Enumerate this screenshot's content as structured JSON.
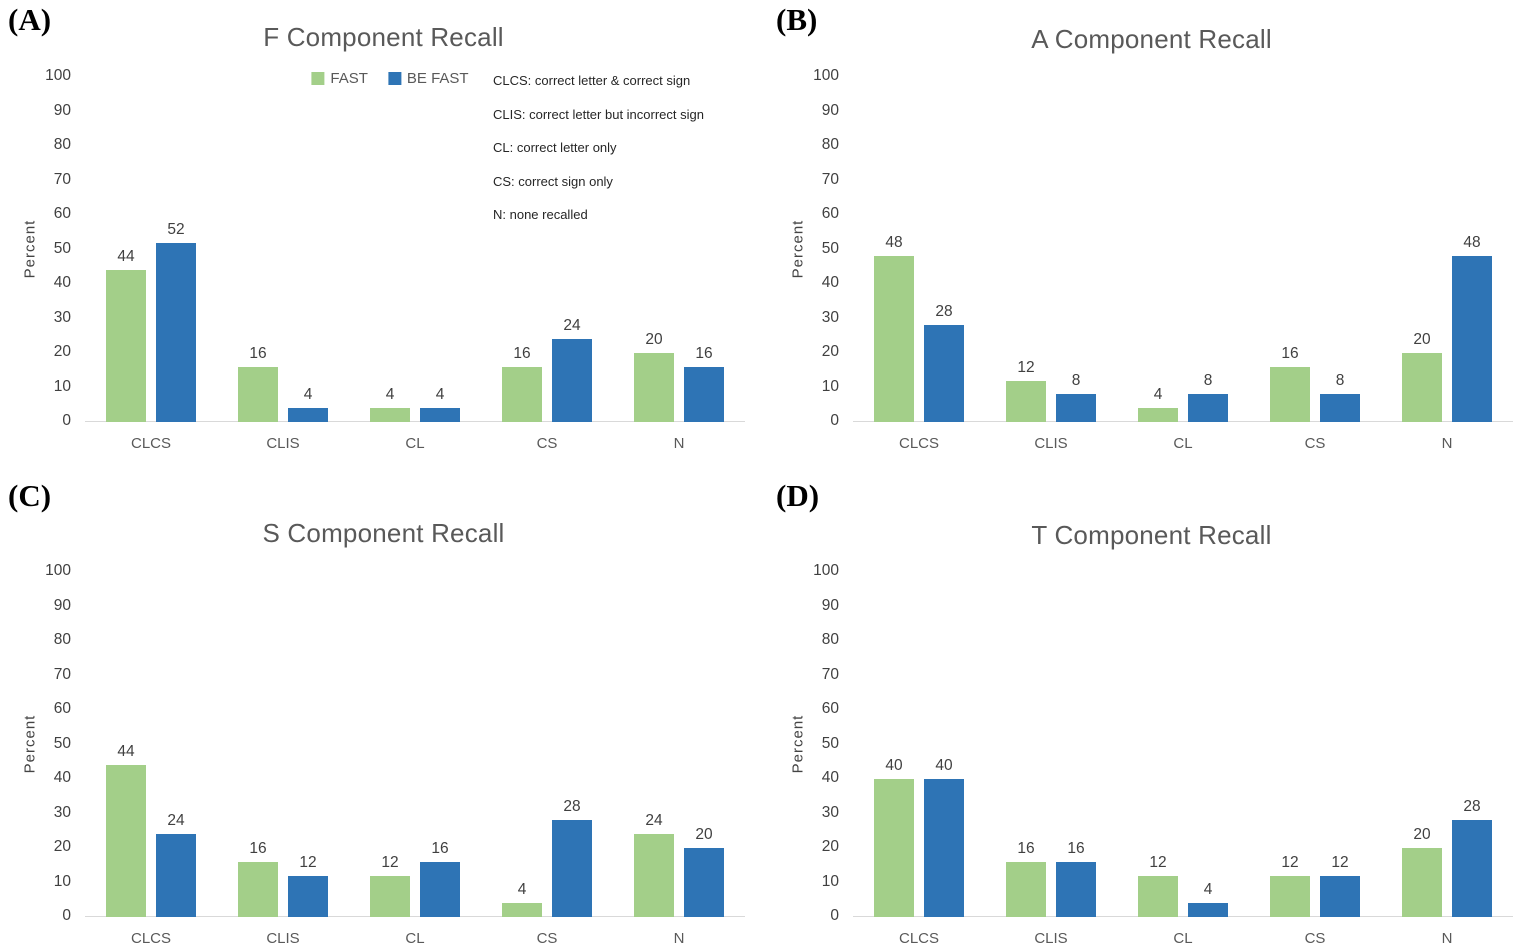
{
  "figure": {
    "background": "#ffffff",
    "series_colors": {
      "FAST": "#a3cf89",
      "BE FAST": "#2e74b5"
    },
    "axis_line_color": "#d9d9d9",
    "title_color": "#595959",
    "legend": {
      "position": "inside-top-center of panel A only",
      "items": [
        {
          "label": "FAST"
        },
        {
          "label": "BE FAST"
        }
      ]
    },
    "annotations": {
      "location": "panel A, right side of plot area",
      "lines": [
        "CLCS: correct letter & correct sign",
        "CLIS: correct letter but incorrect sign",
        "CL: correct letter only",
        "CS: correct sign only",
        "N: none recalled"
      ]
    }
  },
  "chart_data": [
    {
      "type": "bar",
      "panel_label": "(A)",
      "title": "F Component Recall",
      "xlabel": "",
      "ylabel": "Percent",
      "ylim": [
        0,
        100
      ],
      "yticks": [
        0,
        10,
        20,
        30,
        40,
        50,
        60,
        70,
        80,
        90,
        100
      ],
      "grid": false,
      "show_legend": true,
      "categories": [
        "CLCS",
        "CLIS",
        "CL",
        "CS",
        "N"
      ],
      "series": [
        {
          "name": "FAST",
          "color": "#a3cf89",
          "values": [
            44,
            16,
            4,
            16,
            20
          ]
        },
        {
          "name": "BE FAST",
          "color": "#2e74b5",
          "values": [
            52,
            4,
            4,
            24,
            16
          ]
        }
      ]
    },
    {
      "type": "bar",
      "panel_label": "(B)",
      "title": "A Component Recall",
      "xlabel": "",
      "ylabel": "Percent",
      "ylim": [
        0,
        100
      ],
      "yticks": [
        0,
        10,
        20,
        30,
        40,
        50,
        60,
        70,
        80,
        90,
        100
      ],
      "grid": false,
      "show_legend": false,
      "categories": [
        "CLCS",
        "CLIS",
        "CL",
        "CS",
        "N"
      ],
      "series": [
        {
          "name": "FAST",
          "color": "#a3cf89",
          "values": [
            48,
            12,
            4,
            16,
            20
          ]
        },
        {
          "name": "BE FAST",
          "color": "#2e74b5",
          "values": [
            28,
            8,
            8,
            8,
            48
          ]
        }
      ]
    },
    {
      "type": "bar",
      "panel_label": "(C)",
      "title": "S Component Recall",
      "xlabel": "",
      "ylabel": "Percent",
      "ylim": [
        0,
        100
      ],
      "yticks": [
        0,
        10,
        20,
        30,
        40,
        50,
        60,
        70,
        80,
        90,
        100
      ],
      "grid": false,
      "show_legend": false,
      "categories": [
        "CLCS",
        "CLIS",
        "CL",
        "CS",
        "N"
      ],
      "series": [
        {
          "name": "FAST",
          "color": "#a3cf89",
          "values": [
            44,
            16,
            12,
            4,
            24
          ]
        },
        {
          "name": "BE FAST",
          "color": "#2e74b5",
          "values": [
            24,
            12,
            16,
            28,
            20
          ]
        }
      ]
    },
    {
      "type": "bar",
      "panel_label": "(D)",
      "title": "T Component Recall",
      "xlabel": "",
      "ylabel": "Percent",
      "ylim": [
        0,
        100
      ],
      "yticks": [
        0,
        10,
        20,
        30,
        40,
        50,
        60,
        70,
        80,
        90,
        100
      ],
      "grid": false,
      "show_legend": false,
      "categories": [
        "CLCS",
        "CLIS",
        "CL",
        "CS",
        "N"
      ],
      "series": [
        {
          "name": "FAST",
          "color": "#a3cf89",
          "values": [
            40,
            16,
            12,
            12,
            20
          ]
        },
        {
          "name": "BE FAST",
          "color": "#2e74b5",
          "values": [
            40,
            16,
            4,
            12,
            28
          ]
        }
      ]
    }
  ]
}
